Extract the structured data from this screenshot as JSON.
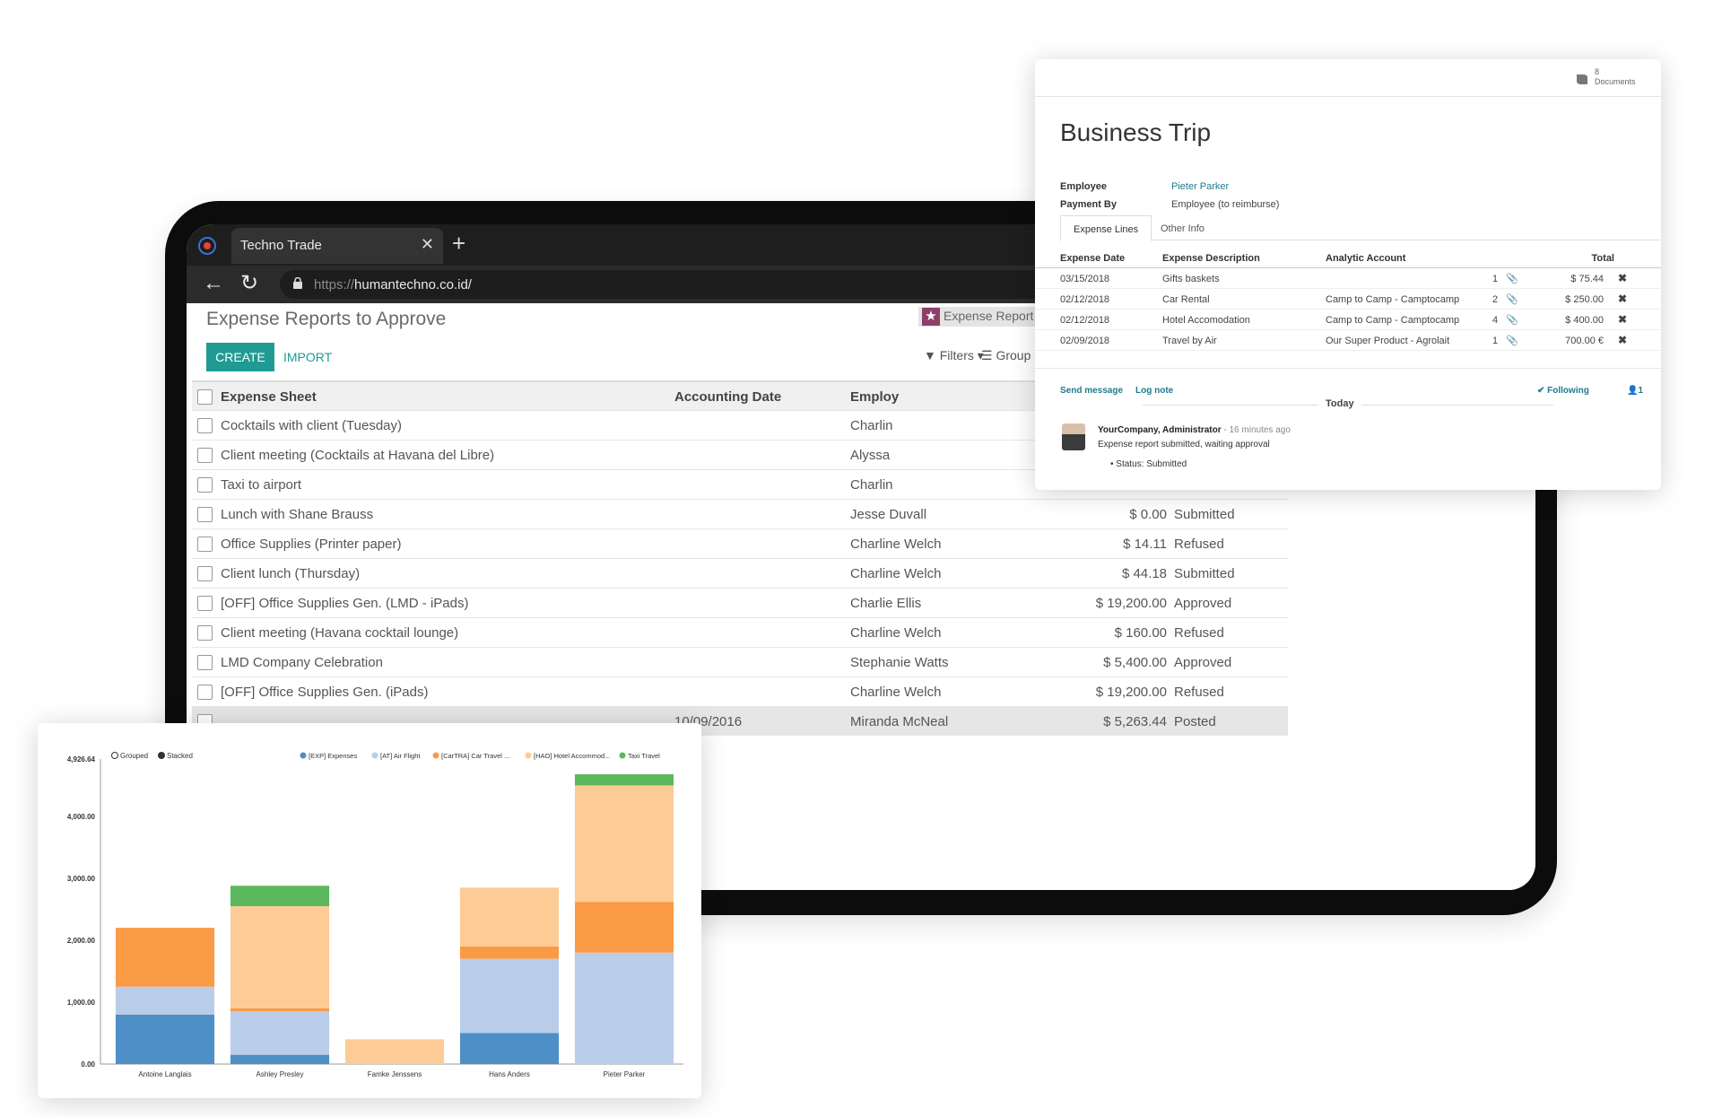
{
  "browser": {
    "tab_title": "Techno Trade",
    "tab_close": "✕",
    "new_tab": "+",
    "url_protocol": "https://",
    "url_host": "humantechno.co.id/"
  },
  "odoo": {
    "page_title": "Expense Reports to Approve",
    "create_label": "CREATE",
    "import_label": "IMPORT",
    "search_facet": "Expense Report (ALL)",
    "filters_label": "Filters",
    "groupby_label": "Group By",
    "columns": {
      "sheet": "Expense Sheet",
      "date": "Accounting Date",
      "employee": "Employ"
    },
    "rows": [
      {
        "name": "Cocktails with client (Tuesday)",
        "date": "",
        "employee": "Charlin",
        "total": "",
        "status": ""
      },
      {
        "name": "Client meeting (Cocktails at Havana del Libre)",
        "date": "",
        "employee": "Alyssa",
        "total": "",
        "status": ""
      },
      {
        "name": "Taxi to airport",
        "date": "",
        "employee": "Charlin",
        "total": "",
        "status": ""
      },
      {
        "name": "Lunch with Shane Brauss",
        "date": "",
        "employee": "Jesse Duvall",
        "total": "$ 0.00",
        "status": "Submitted"
      },
      {
        "name": "Office Supplies (Printer paper)",
        "date": "",
        "employee": "Charline Welch",
        "total": "$ 14.11",
        "status": "Refused"
      },
      {
        "name": "Client lunch (Thursday)",
        "date": "",
        "employee": "Charline Welch",
        "total": "$ 44.18",
        "status": "Submitted"
      },
      {
        "name": "[OFF] Office Supplies Gen. (LMD - iPads)",
        "date": "",
        "employee": "Charlie Ellis",
        "total": "$ 19,200.00",
        "status": "Approved"
      },
      {
        "name": "Client meeting (Havana cocktail lounge)",
        "date": "",
        "employee": "Charline Welch",
        "total": "$ 160.00",
        "status": "Refused"
      },
      {
        "name": "LMD Company Celebration",
        "date": "",
        "employee": "Stephanie Watts",
        "total": "$ 5,400.00",
        "status": "Approved"
      },
      {
        "name": "[OFF] Office Supplies Gen. (iPads)",
        "date": "",
        "employee": "Charline Welch",
        "total": "$ 19,200.00",
        "status": "Refused"
      },
      {
        "name": "",
        "date": "10/09/2016",
        "employee": "Miranda McNeal",
        "total": "$ 5,263.44",
        "status": "Posted"
      }
    ]
  },
  "trip": {
    "documents_count": "8",
    "documents_label": "Documents",
    "title": "Business Trip",
    "employee_label": "Employee",
    "employee_value": "Pieter Parker",
    "payment_label": "Payment By",
    "payment_value": "Employee (to reimburse)",
    "tab_lines": "Expense Lines",
    "tab_other": "Other Info",
    "headers": {
      "date": "Expense Date",
      "desc": "Expense Description",
      "account": "Analytic Account",
      "total": "Total"
    },
    "lines": [
      {
        "date": "03/15/2018",
        "desc": "Gifts baskets",
        "account": "",
        "qty": "1",
        "total": "$ 75.44"
      },
      {
        "date": "02/12/2018",
        "desc": "Car Rental",
        "account": "Camp to Camp - Camptocamp",
        "qty": "2",
        "total": "$ 250.00"
      },
      {
        "date": "02/12/2018",
        "desc": "Hotel Accomodation",
        "account": "Camp to Camp - Camptocamp",
        "qty": "4",
        "total": "$ 400.00"
      },
      {
        "date": "02/09/2018",
        "desc": "Travel by Air",
        "account": "Our Super Product - Agrolait",
        "qty": "1",
        "total": "700.00 €"
      }
    ],
    "send_message": "Send message",
    "log_note": "Log note",
    "following": "✔ Following",
    "followers": "1",
    "today": "Today",
    "msg_author": "YourCompany, Administrator",
    "msg_ago": " - 16 minutes ago",
    "msg_body": "Expense report submitted, waiting approval",
    "msg_status": "Status: Submitted"
  },
  "chart_data": {
    "type": "bar",
    "stacked": true,
    "mode_options": [
      "Grouped",
      "Stacked"
    ],
    "selected_mode": "Stacked",
    "categories": [
      "Antoine Langlais",
      "Ashley Presley",
      "Famke Jenssens",
      "Hans Anders",
      "Pieter Parker"
    ],
    "ylim": [
      0,
      4926.64
    ],
    "yticks": [
      "0.00",
      "1,000.00",
      "2,000.00",
      "3,000.00",
      "4,000.00",
      "4,926.64"
    ],
    "legend_position": "top-right",
    "series": [
      {
        "name": "[EXP] Expenses",
        "color": "#4d8fc6",
        "values": [
          800,
          150,
          0,
          500,
          0
        ]
      },
      {
        "name": "[AT] Air Flight",
        "color": "#b9cde8",
        "values": [
          450,
          700,
          0,
          1200,
          1800
        ]
      },
      {
        "name": "[CarTRA] Car Travel ...",
        "color": "#fb9a45",
        "values": [
          950,
          50,
          0,
          200,
          820
        ]
      },
      {
        "name": "[HAO] Hotel Accommod...",
        "color": "#fdcb95",
        "values": [
          0,
          1650,
          400,
          950,
          1880
        ]
      },
      {
        "name": "Taxi Travel",
        "color": "#5cb85c",
        "values": [
          0,
          330,
          0,
          0,
          180
        ]
      }
    ]
  }
}
